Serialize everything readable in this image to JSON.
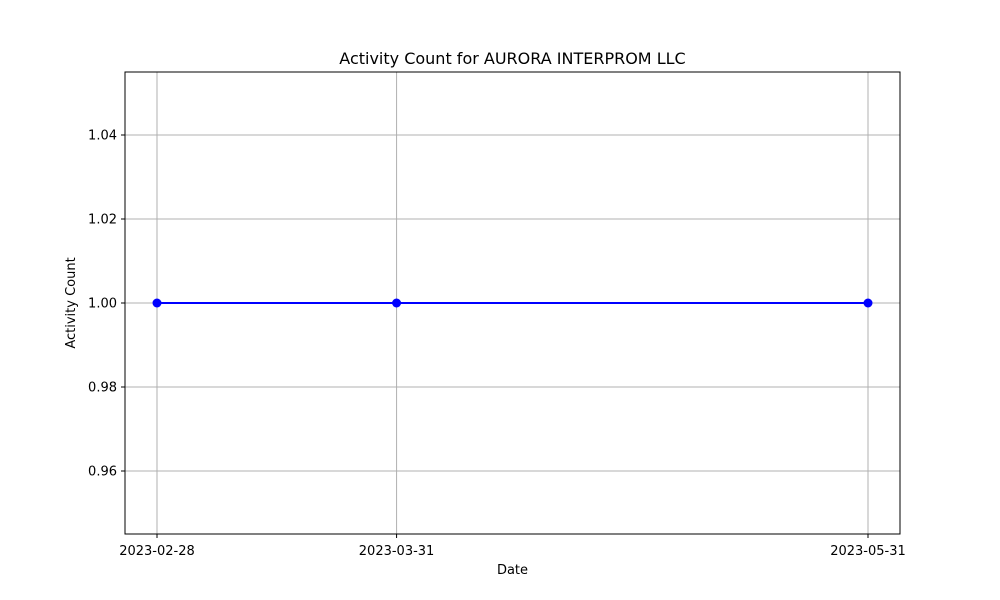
{
  "chart_data": {
    "type": "line",
    "title": "Activity Count for AURORA INTERPROM LLC",
    "xlabel": "Date",
    "ylabel": "Activity Count",
    "x": [
      "2023-02-28",
      "2023-03-31",
      "2023-05-31"
    ],
    "x_ticks": [
      "2023-02-28",
      "2023-03-31",
      "2023-05-31"
    ],
    "series": [
      {
        "values": [
          1,
          1,
          1
        ],
        "color": "#0000ff",
        "marker": "circle"
      }
    ],
    "ylim": [
      0.945,
      1.055
    ],
    "y_ticks": [
      0.96,
      0.98,
      1.0,
      1.02,
      1.04
    ],
    "y_tick_labels": [
      "0.96",
      "0.98",
      "1.00",
      "1.02",
      "1.04"
    ],
    "grid": true,
    "legend": "none"
  }
}
